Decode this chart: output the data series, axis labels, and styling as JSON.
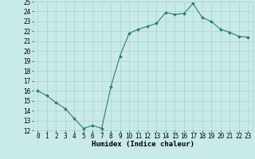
{
  "x": [
    0,
    1,
    2,
    3,
    4,
    5,
    6,
    7,
    8,
    9,
    10,
    11,
    12,
    13,
    14,
    15,
    16,
    17,
    18,
    19,
    20,
    21,
    22,
    23
  ],
  "y": [
    16.0,
    15.5,
    14.8,
    14.2,
    13.2,
    12.2,
    12.5,
    12.2,
    16.4,
    19.5,
    21.8,
    22.2,
    22.5,
    22.8,
    23.9,
    23.7,
    23.8,
    24.8,
    23.4,
    23.0,
    22.2,
    21.9,
    21.5,
    21.4
  ],
  "line_color": "#2e7d6e",
  "marker": "D",
  "marker_size": 2,
  "bg_color": "#c8eae8",
  "grid_color": "#aad4d0",
  "xlabel": "Humidex (Indice chaleur)",
  "ylabel": "",
  "xlim": [
    -0.5,
    23.5
  ],
  "ylim": [
    12,
    25
  ],
  "yticks": [
    12,
    13,
    14,
    15,
    16,
    17,
    18,
    19,
    20,
    21,
    22,
    23,
    24,
    25
  ],
  "xticks": [
    0,
    1,
    2,
    3,
    4,
    5,
    6,
    7,
    8,
    9,
    10,
    11,
    12,
    13,
    14,
    15,
    16,
    17,
    18,
    19,
    20,
    21,
    22,
    23
  ],
  "tick_fontsize": 5.5,
  "xlabel_fontsize": 6.5
}
